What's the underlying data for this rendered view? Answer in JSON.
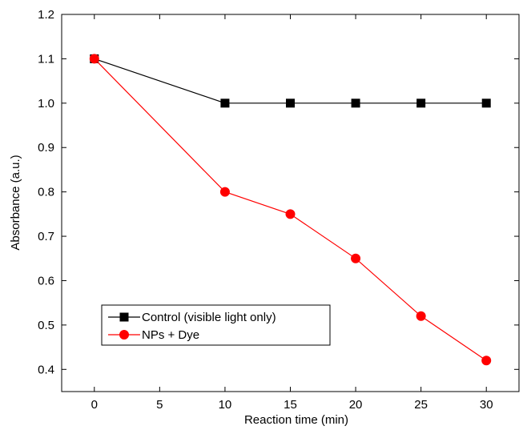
{
  "chart_data": {
    "type": "line",
    "xlabel": "Reaction time (min)",
    "ylabel": "Absorbance (a.u.)",
    "xlim": [
      -2.5,
      32.5
    ],
    "ylim": [
      0.35,
      1.2
    ],
    "xticks": [
      0,
      5,
      10,
      15,
      20,
      25,
      30
    ],
    "xtick_labels": [
      "0",
      "5",
      "10",
      "15",
      "20",
      "25",
      "30"
    ],
    "yticks": [
      0.4,
      0.5,
      0.6,
      0.7,
      0.8,
      0.9,
      1.0,
      1.1,
      1.2
    ],
    "ytick_labels": [
      "0.4",
      "0.5",
      "0.6",
      "0.7",
      "0.8",
      "0.9",
      "1.0",
      "1.1",
      "1.2"
    ],
    "grid": false,
    "legend_position": "bottom-left",
    "series": [
      {
        "name": "Control (visible light only)",
        "color": "#000000",
        "marker": "square",
        "x": [
          0,
          10,
          15,
          20,
          25,
          30
        ],
        "y": [
          1.1,
          1.0,
          1.0,
          1.0,
          1.0,
          1.0
        ]
      },
      {
        "name": "NPs + Dye",
        "color": "#ff0000",
        "marker": "circle",
        "x": [
          0,
          10,
          15,
          20,
          25,
          30
        ],
        "y": [
          1.1,
          0.8,
          0.75,
          0.65,
          0.52,
          0.42
        ]
      }
    ]
  }
}
